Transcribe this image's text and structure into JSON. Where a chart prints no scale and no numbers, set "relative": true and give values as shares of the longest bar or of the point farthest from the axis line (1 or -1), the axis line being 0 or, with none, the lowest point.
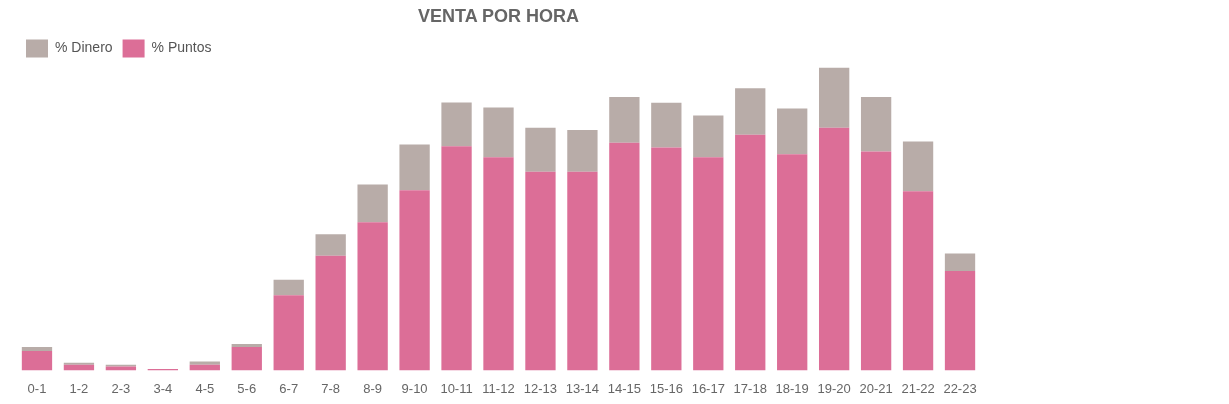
{
  "chart_data": {
    "type": "bar",
    "title": "VENTA POR HORA",
    "relative": true,
    "stacked": true,
    "legend": "top left",
    "tick_labels": "x",
    "categories": [
      "0-1",
      "1-2",
      "2-3",
      "3-4",
      "4-5",
      "5-6",
      "6-7",
      "7-8",
      "8-9",
      "9-10",
      "10-11",
      "11-12",
      "12-13",
      "13-14",
      "14-15",
      "15-16",
      "16-17",
      "17-18",
      "18-19",
      "19-20",
      "20-21",
      "21-22",
      "22-23"
    ],
    "series": [
      {
        "name": "% Puntos",
        "color": "#dc6e97",
        "values": [
          0.064,
          0.019,
          0.013,
          0.005,
          0.019,
          0.077,
          0.248,
          0.379,
          0.489,
          0.595,
          0.74,
          0.704,
          0.656,
          0.656,
          0.752,
          0.736,
          0.704,
          0.778,
          0.714,
          0.801,
          0.723,
          0.592,
          0.328
        ]
      },
      {
        "name": "% Dinero",
        "color": "#b8aca8",
        "values": [
          0.013,
          0.006,
          0.006,
          null,
          0.01,
          0.01,
          0.051,
          0.071,
          0.125,
          0.151,
          0.145,
          0.164,
          0.145,
          0.138,
          0.151,
          0.148,
          0.138,
          0.154,
          0.151,
          0.199,
          0.18,
          0.164,
          0.058
        ]
      }
    ]
  }
}
